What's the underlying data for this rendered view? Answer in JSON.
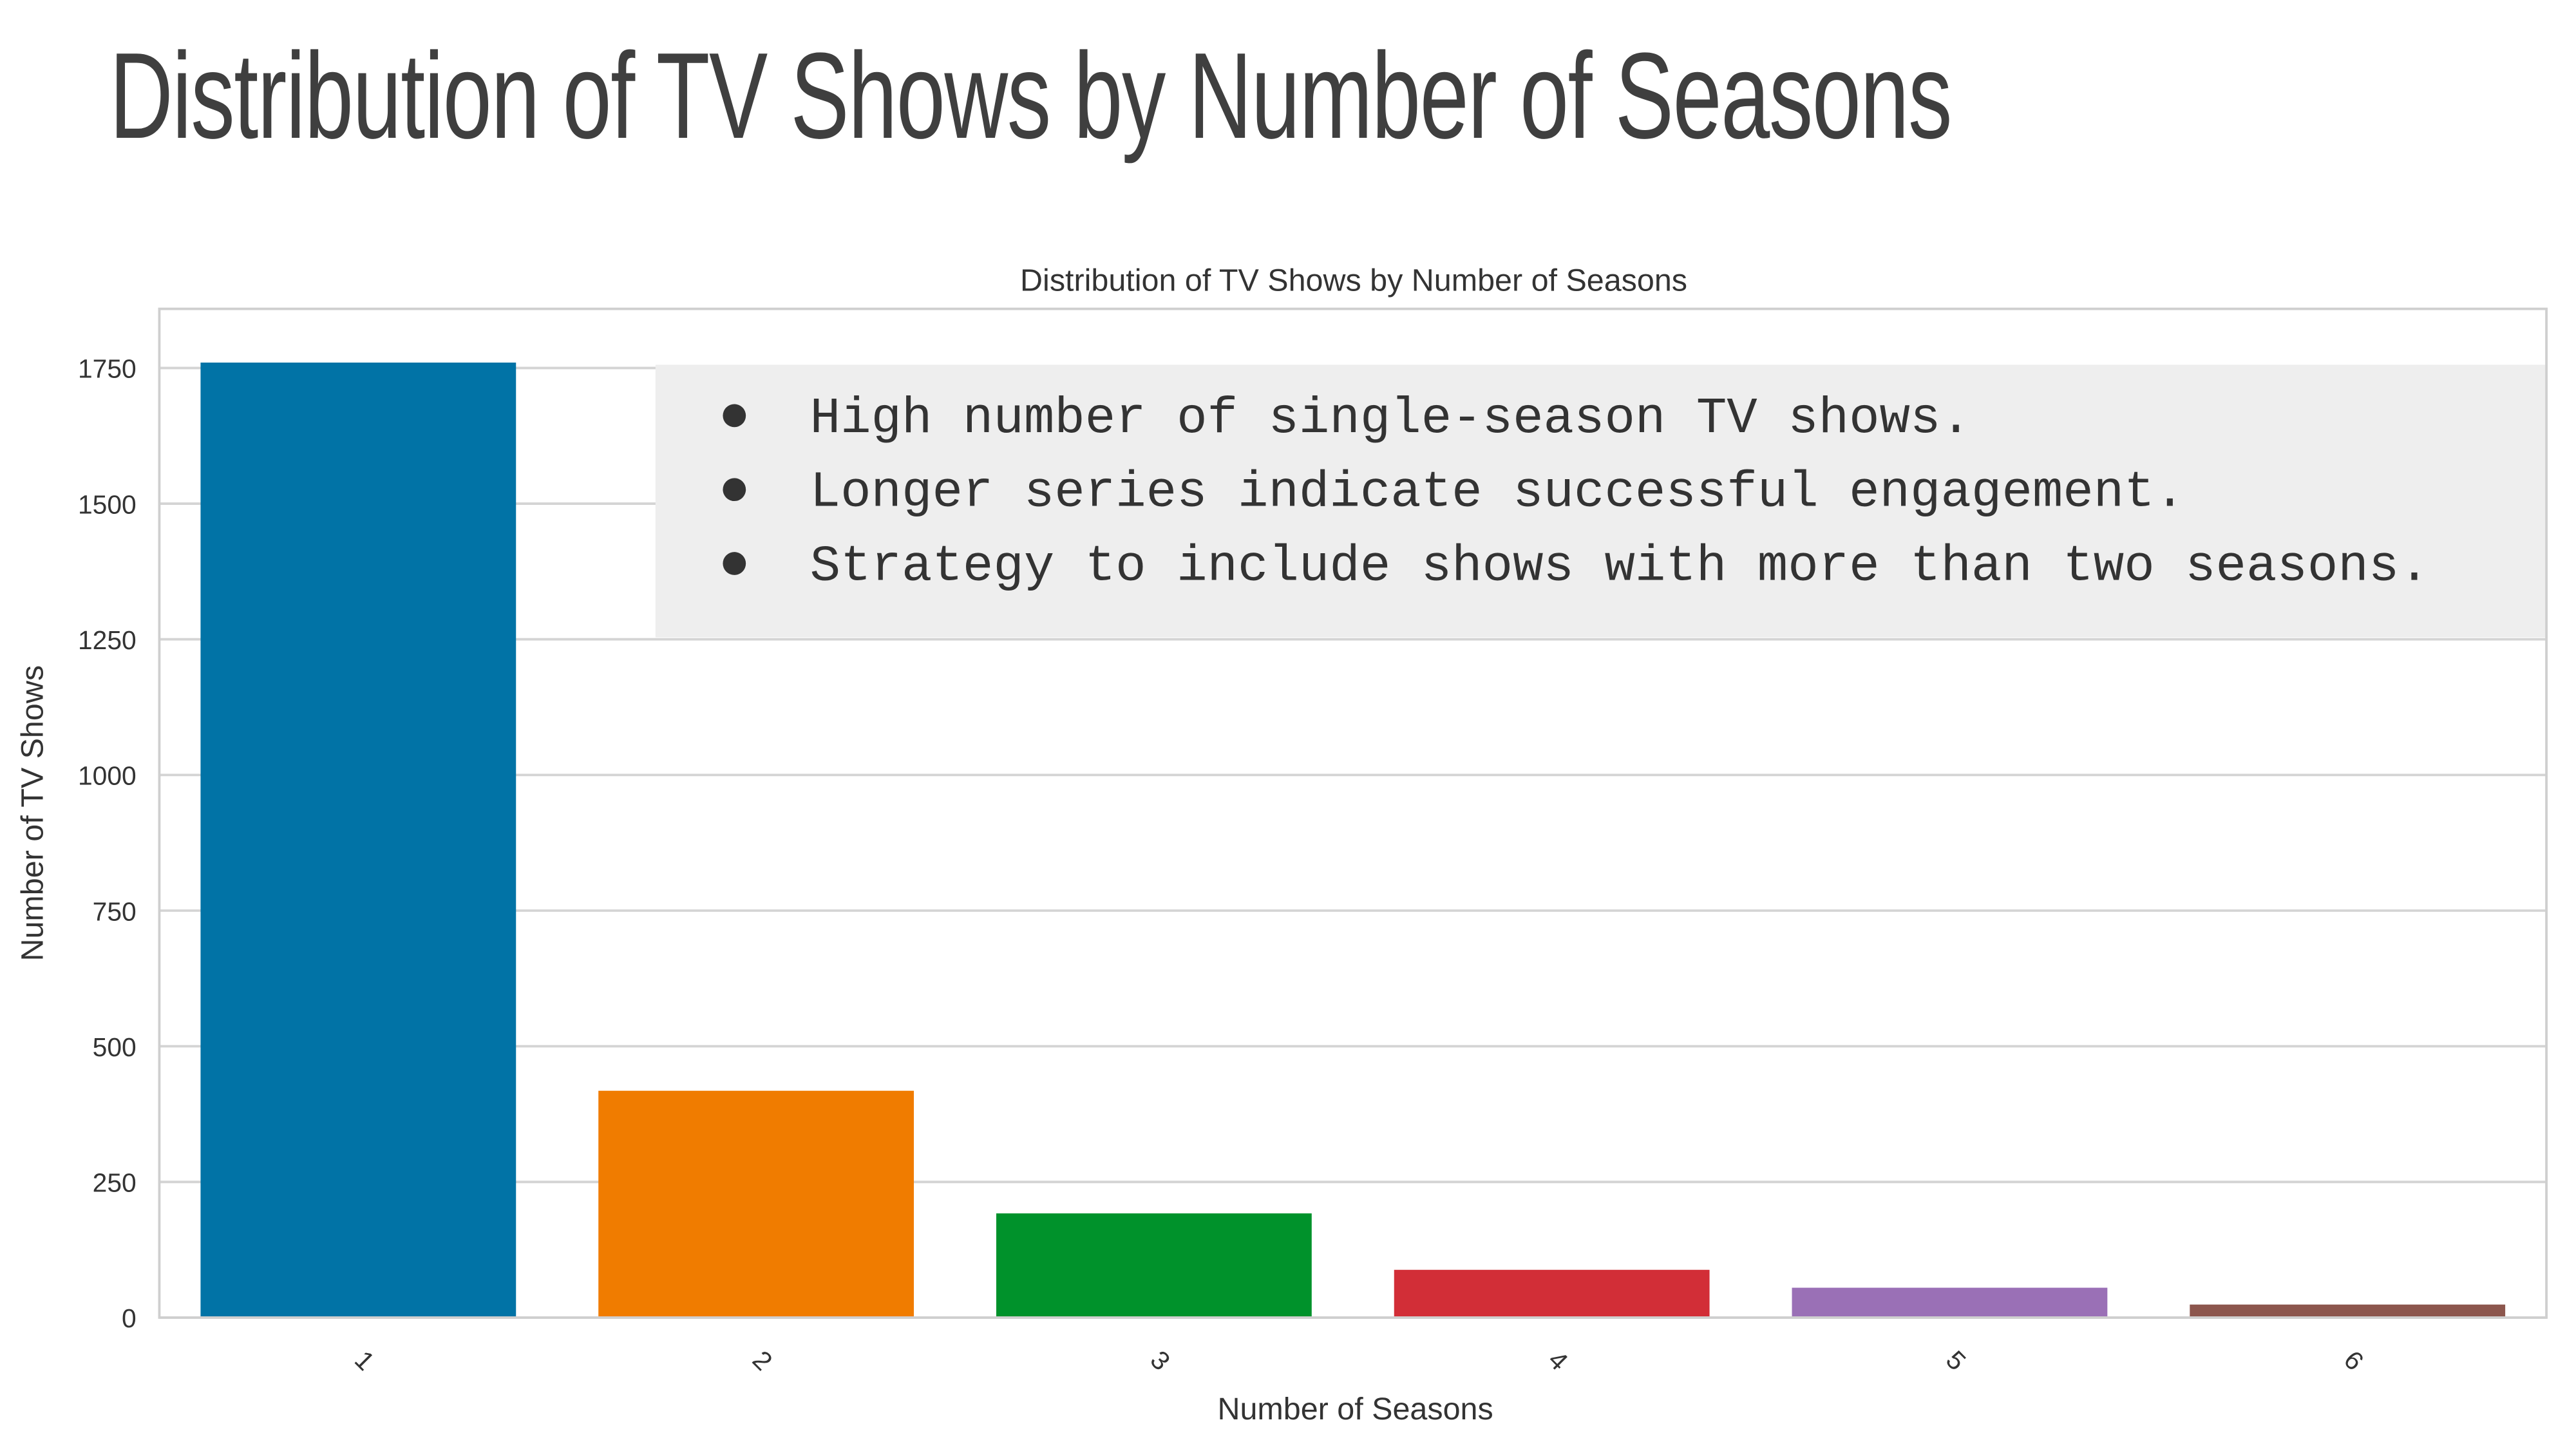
{
  "slide_title": "Distribution of TV Shows by Number of Seasons",
  "chart_data": {
    "type": "bar",
    "title": "Distribution of TV Shows by Number of Seasons",
    "xlabel": "Number of Seasons",
    "ylabel": "Number of TV Shows",
    "categories": [
      "1",
      "2",
      "3",
      "4",
      "5",
      "6"
    ],
    "values": [
      1760,
      418,
      192,
      88,
      55,
      24
    ],
    "colors": [
      "#0173a6",
      "#f07c00",
      "#00922b",
      "#d22e37",
      "#9a70b6",
      "#8c564d"
    ],
    "ylim": [
      0,
      1860
    ],
    "yticks": [
      0,
      250,
      500,
      750,
      1000,
      1250,
      1500,
      1750
    ],
    "grid": true
  },
  "annotation": {
    "bullets": [
      "High number of single-season TV shows.",
      "Longer series indicate successful engagement.",
      "Strategy to include shows with more than two seasons."
    ]
  }
}
